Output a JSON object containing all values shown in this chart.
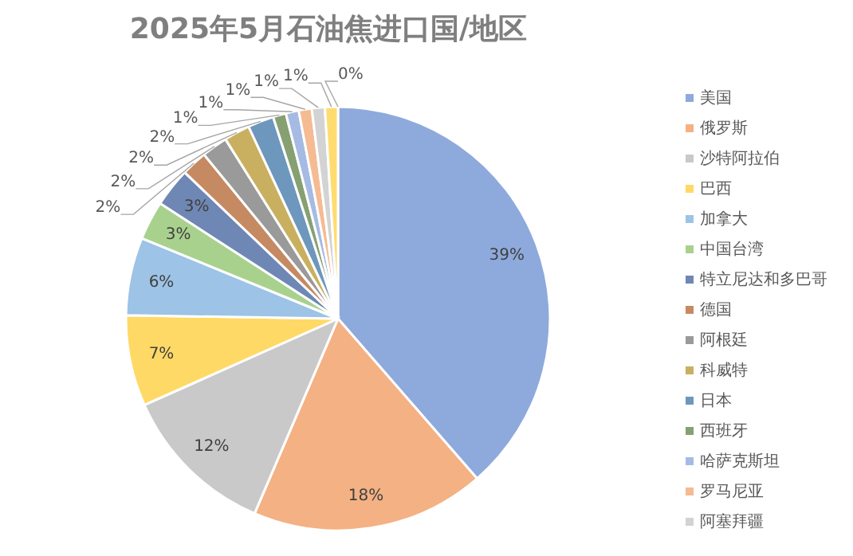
{
  "chart_data": {
    "type": "pie",
    "title": "2025年5月石油焦进口国/地区",
    "categories": [
      "美国",
      "俄罗斯",
      "沙特阿拉伯",
      "巴西",
      "加拿大",
      "中国台湾",
      "特立尼达和多巴哥",
      "德国",
      "阿根廷",
      "科威特",
      "日本",
      "西班牙",
      "哈萨克斯坦",
      "罗马尼亚",
      "阿塞拜疆",
      null,
      null
    ],
    "values": [
      39,
      18,
      12,
      7,
      6,
      3,
      3,
      2,
      2,
      2,
      2,
      1,
      1,
      1,
      1,
      1,
      0
    ],
    "colors": [
      "#8eaadc",
      "#f4b183",
      "#c9c9c9",
      "#ffd966",
      "#9dc3e6",
      "#a9d18e",
      "#6f87b5",
      "#c58a62",
      "#9a9a9a",
      "#c9b060",
      "#6d97bd",
      "#86a072",
      "#a5bbe3",
      "#f5bb93",
      "#d3d3d3",
      "#ffdc70",
      null
    ],
    "value_labels": [
      "39%",
      "18%",
      "12%",
      "7%",
      "6%",
      "3%",
      "3%",
      "2%",
      "2%",
      "2%",
      "2%",
      "1%",
      "1%",
      "1%",
      "1%",
      "1%",
      "0%"
    ],
    "legend": "right"
  }
}
